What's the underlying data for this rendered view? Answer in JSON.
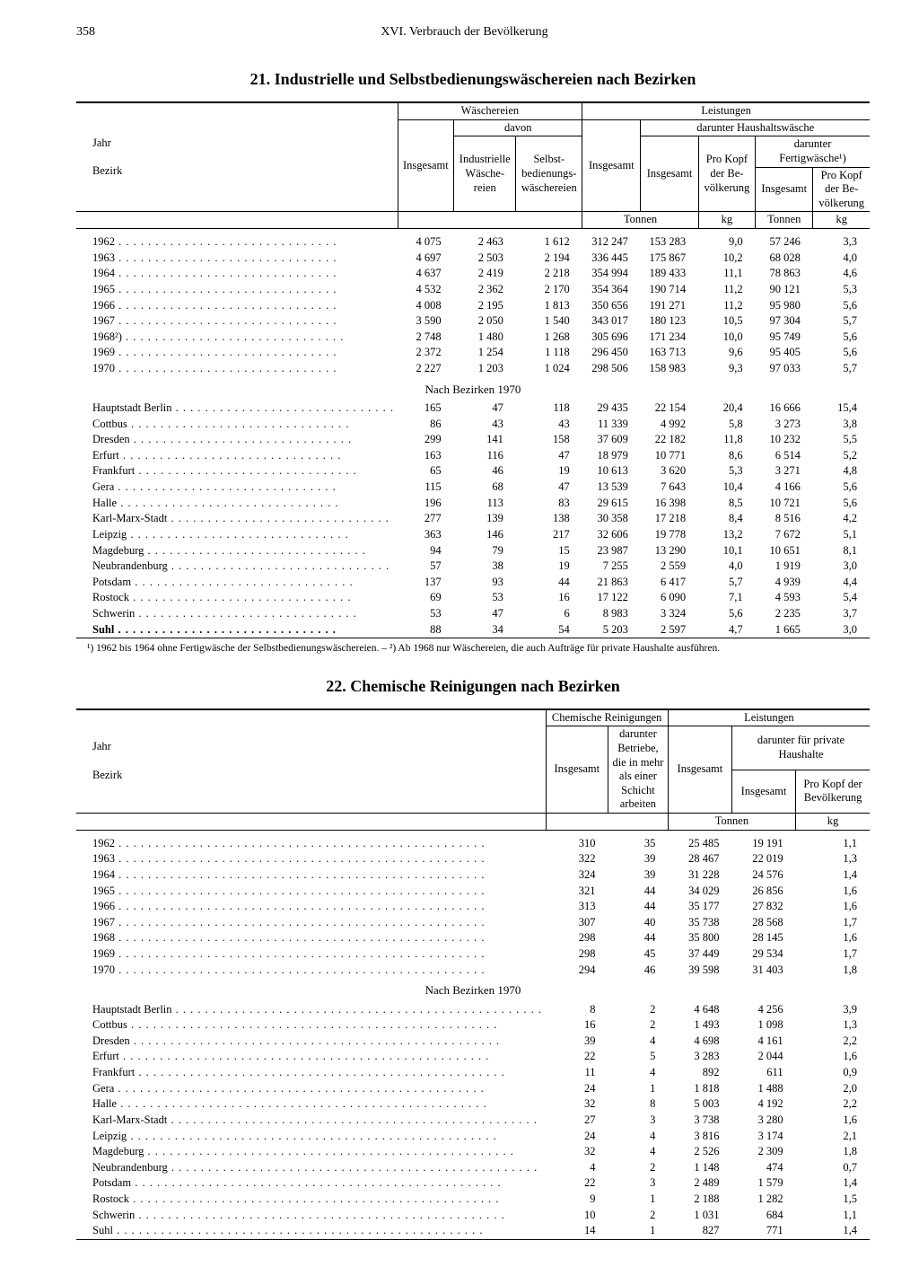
{
  "page": {
    "number": "358",
    "running_title": "XVI. Verbrauch der Bevölkerung"
  },
  "table21": {
    "title": "21.  Industrielle und Selbstbedienungswäschereien nach Bezirken",
    "headers": {
      "jahr": "Jahr",
      "bezirk": "Bezirk",
      "waeschereien": "Wäschereien",
      "davon": "davon",
      "insgesamt": "Insgesamt",
      "industrielle": "Industrielle Wäsche-reien",
      "selbst": "Selbst-bedienungs-wäschereien",
      "leistungen": "Leistungen",
      "darunter_haushalt": "darunter Haushaltswäsche",
      "darunter_fertig": "darunter Fertigwäsche¹)",
      "prokopf": "Pro Kopf der Be-völkerung",
      "tonnen": "Tonnen",
      "kg": "kg"
    },
    "subhead": "Nach Bezirken 1970",
    "years_rows": [
      [
        "1962",
        "4 075",
        "2 463",
        "1 612",
        "312 247",
        "153 283",
        "9,0",
        "57 246",
        "3,3"
      ],
      [
        "1963",
        "4 697",
        "2 503",
        "2 194",
        "336 445",
        "175 867",
        "10,2",
        "68 028",
        "4,0"
      ],
      [
        "1964",
        "4 637",
        "2 419",
        "2 218",
        "354 994",
        "189 433",
        "11,1",
        "78 863",
        "4,6"
      ],
      [
        "1965",
        "4 532",
        "2 362",
        "2 170",
        "354 364",
        "190 714",
        "11,2",
        "90 121",
        "5,3"
      ],
      [
        "1966",
        "4 008",
        "2 195",
        "1 813",
        "350 656",
        "191 271",
        "11,2",
        "95 980",
        "5,6"
      ],
      [
        "1967",
        "3 590",
        "2 050",
        "1 540",
        "343 017",
        "180 123",
        "10,5",
        "97 304",
        "5,7"
      ],
      [
        "1968²)",
        "2 748",
        "1 480",
        "1 268",
        "305 696",
        "171 234",
        "10,0",
        "95 749",
        "5,6"
      ],
      [
        "1969",
        "2 372",
        "1 254",
        "1 118",
        "296 450",
        "163 713",
        "9,6",
        "95 405",
        "5,6"
      ],
      [
        "1970",
        "2 227",
        "1 203",
        "1 024",
        "298 506",
        "158 983",
        "9,3",
        "97 033",
        "5,7"
      ]
    ],
    "bezirk_rows": [
      [
        "Hauptstadt Berlin",
        "165",
        "47",
        "118",
        "29 435",
        "22 154",
        "20,4",
        "16 666",
        "15,4"
      ],
      [
        "Cottbus",
        "86",
        "43",
        "43",
        "11 339",
        "4 992",
        "5,8",
        "3 273",
        "3,8"
      ],
      [
        "Dresden",
        "299",
        "141",
        "158",
        "37 609",
        "22 182",
        "11,8",
        "10 232",
        "5,5"
      ],
      [
        "Erfurt",
        "163",
        "116",
        "47",
        "18 979",
        "10 771",
        "8,6",
        "6 514",
        "5,2"
      ],
      [
        "Frankfurt",
        "65",
        "46",
        "19",
        "10 613",
        "3 620",
        "5,3",
        "3 271",
        "4,8"
      ],
      [
        "Gera",
        "115",
        "68",
        "47",
        "13 539",
        "7 643",
        "10,4",
        "4 166",
        "5,6"
      ],
      [
        "Halle",
        "196",
        "113",
        "83",
        "29 615",
        "16 398",
        "8,5",
        "10 721",
        "5,6"
      ],
      [
        "Karl-Marx-Stadt",
        "277",
        "139",
        "138",
        "30 358",
        "17 218",
        "8,4",
        "8 516",
        "4,2"
      ],
      [
        "Leipzig",
        "363",
        "146",
        "217",
        "32 606",
        "19 778",
        "13,2",
        "7 672",
        "5,1"
      ],
      [
        "Magdeburg",
        "94",
        "79",
        "15",
        "23 987",
        "13 290",
        "10,1",
        "10 651",
        "8,1"
      ],
      [
        "Neubrandenburg",
        "57",
        "38",
        "19",
        "7 255",
        "2 559",
        "4,0",
        "1 919",
        "3,0"
      ],
      [
        "Potsdam",
        "137",
        "93",
        "44",
        "21 863",
        "6 417",
        "5,7",
        "4 939",
        "4,4"
      ],
      [
        "Rostock",
        "69",
        "53",
        "16",
        "17 122",
        "6 090",
        "7,1",
        "4 593",
        "5,4"
      ],
      [
        "Schwerin",
        "53",
        "47",
        "6",
        "8 983",
        "3 324",
        "5,6",
        "2 235",
        "3,7"
      ],
      [
        "Suhl",
        "88",
        "34",
        "54",
        "5 203",
        "2 597",
        "4,7",
        "1 665",
        "3,0"
      ]
    ],
    "footnote": "¹) 1962 bis 1964 ohne Fertigwäsche der Selbstbedienungswäschereien. – ²) Ab 1968 nur Wäschereien, die auch Aufträge für private Haushalte ausführen."
  },
  "table22": {
    "title": "22.  Chemische Reinigungen nach Bezirken",
    "headers": {
      "jahr": "Jahr",
      "bezirk": "Bezirk",
      "chem": "Chemische Reinigungen",
      "insgesamt": "Insgesamt",
      "darunter_betriebe": "darunter Betriebe, die in mehr als einer Schicht arbeiten",
      "leistungen": "Leistungen",
      "darunter_priv": "darunter für private Haushalte",
      "prokopf": "Pro Kopf der Bevölkerung",
      "tonnen": "Tonnen",
      "kg": "kg"
    },
    "subhead": "Nach Bezirken 1970",
    "years_rows": [
      [
        "1962",
        "310",
        "35",
        "25 485",
        "19 191",
        "1,1"
      ],
      [
        "1963",
        "322",
        "39",
        "28 467",
        "22 019",
        "1,3"
      ],
      [
        "1964",
        "324",
        "39",
        "31 228",
        "24 576",
        "1,4"
      ],
      [
        "1965",
        "321",
        "44",
        "34 029",
        "26 856",
        "1,6"
      ],
      [
        "1966",
        "313",
        "44",
        "35 177",
        "27 832",
        "1,6"
      ],
      [
        "1967",
        "307",
        "40",
        "35 738",
        "28 568",
        "1,7"
      ],
      [
        "1968",
        "298",
        "44",
        "35 800",
        "28 145",
        "1,6"
      ],
      [
        "1969",
        "298",
        "45",
        "37 449",
        "29 534",
        "1,7"
      ],
      [
        "1970",
        "294",
        "46",
        "39 598",
        "31 403",
        "1,8"
      ]
    ],
    "bezirk_rows": [
      [
        "Hauptstadt Berlin",
        "8",
        "2",
        "4 648",
        "4 256",
        "3,9"
      ],
      [
        "Cottbus",
        "16",
        "2",
        "1 493",
        "1 098",
        "1,3"
      ],
      [
        "Dresden",
        "39",
        "4",
        "4 698",
        "4 161",
        "2,2"
      ],
      [
        "Erfurt",
        "22",
        "5",
        "3 283",
        "2 044",
        "1,6"
      ],
      [
        "Frankfurt",
        "11",
        "4",
        "892",
        "611",
        "0,9"
      ],
      [
        "Gera",
        "24",
        "1",
        "1 818",
        "1 488",
        "2,0"
      ],
      [
        "Halle",
        "32",
        "8",
        "5 003",
        "4 192",
        "2,2"
      ],
      [
        "Karl-Marx-Stadt",
        "27",
        "3",
        "3 738",
        "3 280",
        "1,6"
      ],
      [
        "Leipzig",
        "24",
        "4",
        "3 816",
        "3 174",
        "2,1"
      ],
      [
        "Magdeburg",
        "32",
        "4",
        "2 526",
        "2 309",
        "1,8"
      ],
      [
        "Neubrandenburg",
        "4",
        "2",
        "1 148",
        "474",
        "0,7"
      ],
      [
        "Potsdam",
        "22",
        "3",
        "2 489",
        "1 579",
        "1,4"
      ],
      [
        "Rostock",
        "9",
        "1",
        "2 188",
        "1 282",
        "1,5"
      ],
      [
        "Schwerin",
        "10",
        "2",
        "1 031",
        "684",
        "1,1"
      ],
      [
        "Suhl",
        "14",
        "1",
        "827",
        "771",
        "1,4"
      ]
    ]
  }
}
